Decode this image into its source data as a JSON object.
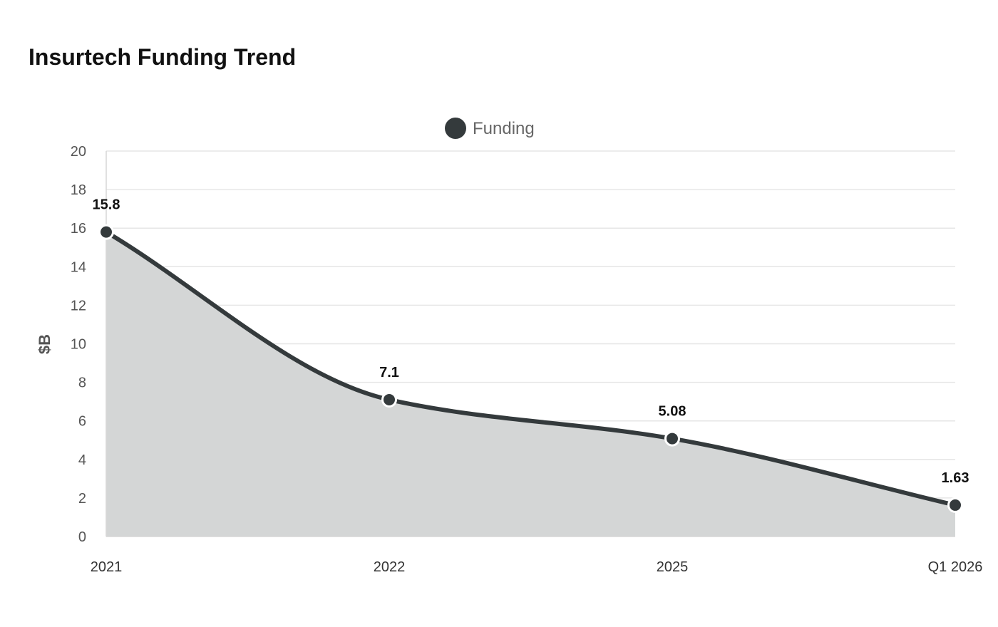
{
  "chart_data": {
    "type": "area",
    "title": "Insurtech Funding Trend",
    "xlabel": "",
    "ylabel": "$B",
    "categories": [
      "2021",
      "2022",
      "2025",
      "Q1 2026"
    ],
    "series": [
      {
        "name": "Funding",
        "values": [
          15.8,
          7.1,
          5.08,
          1.63
        ],
        "labels": [
          "15.8",
          "7.1",
          "5.08",
          "1.63"
        ]
      }
    ],
    "ylim": [
      0,
      20
    ],
    "yticks": [
      0,
      2,
      4,
      6,
      8,
      10,
      12,
      14,
      16,
      18,
      20
    ],
    "ytick_labels": [
      "0",
      "2",
      "4",
      "6",
      "8",
      "10",
      "12",
      "14",
      "16",
      "18",
      "20"
    ],
    "grid": true,
    "legend": "top-center",
    "colors": {
      "line": "#343a3c",
      "fill": "#d4d6d6",
      "grid": "#e6e6e6",
      "axis": "#d6d6d6"
    }
  }
}
